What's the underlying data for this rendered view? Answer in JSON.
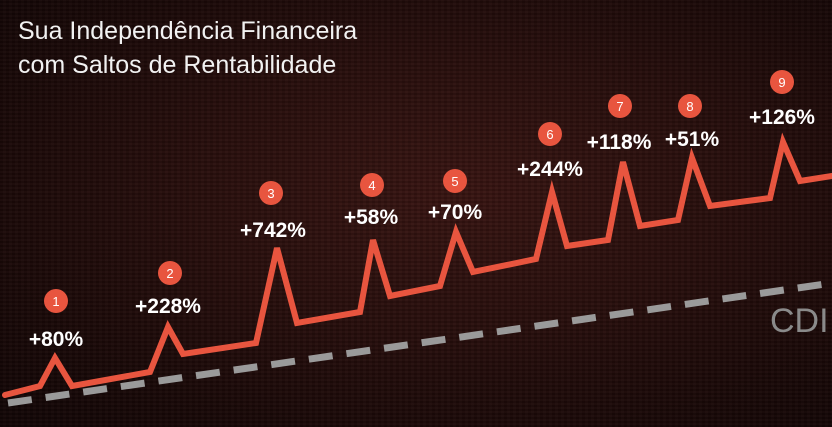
{
  "title": {
    "line1": "Sua Independência Financeira",
    "line2": "com Saltos de Rentabilidade"
  },
  "colors": {
    "line": "#e8553f",
    "badge": "#e8553f",
    "cdi": "#9a9a9a",
    "text": "#ffffff"
  },
  "chart_data": {
    "type": "line",
    "series": [
      {
        "name": "",
        "kind": "jumps"
      },
      {
        "name": "CDI",
        "kind": "baseline",
        "style": "dashed"
      }
    ],
    "jumps": [
      {
        "number": "1",
        "label": "+80%"
      },
      {
        "number": "2",
        "label": "+228%"
      },
      {
        "number": "3",
        "label": "+742%"
      },
      {
        "number": "4",
        "label": "+58%"
      },
      {
        "number": "5",
        "label": "+70%"
      },
      {
        "number": "6",
        "label": "+244%"
      },
      {
        "number": "7",
        "label": "+118%"
      },
      {
        "number": "8",
        "label": "+51%"
      },
      {
        "number": "9",
        "label": "+126%"
      }
    ],
    "cdi_label": "CDI"
  }
}
